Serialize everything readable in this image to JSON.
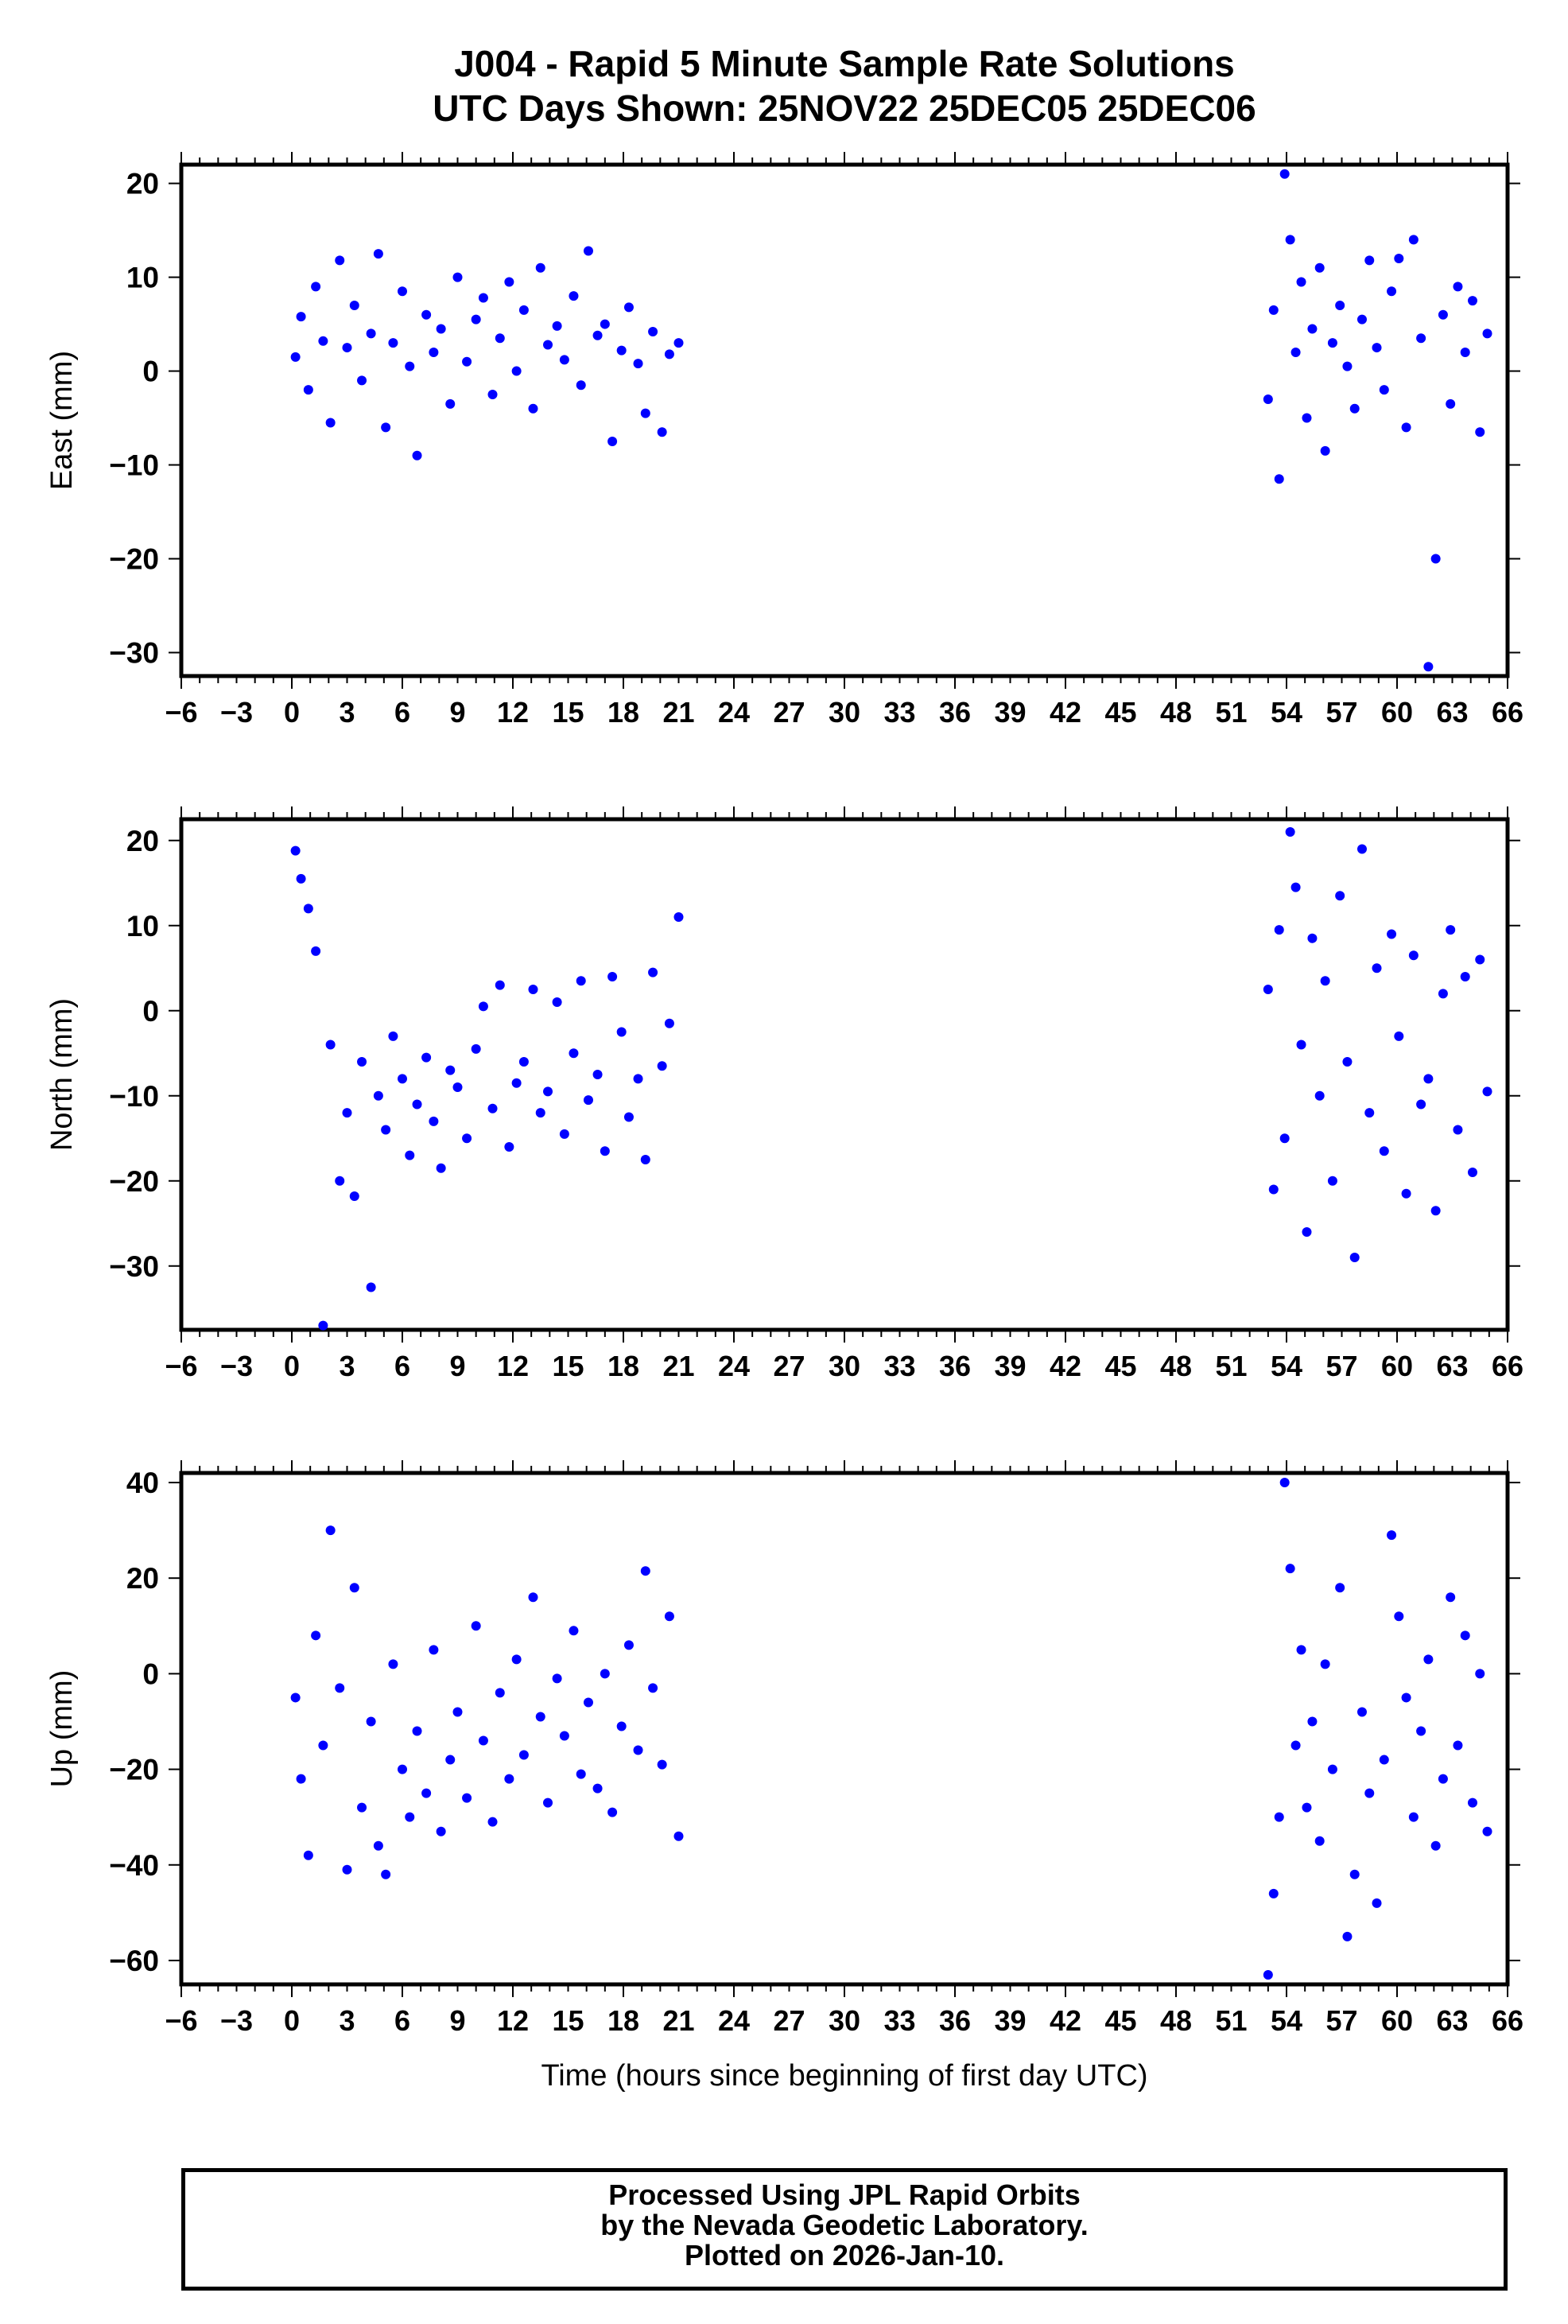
{
  "title_line1": "J004 - Rapid 5 Minute Sample Rate Solutions",
  "title_line2": "UTC Days Shown:  25NOV22 25DEC05 25DEC06",
  "xlabel": "Time (hours since beginning of first day UTC)",
  "footer": {
    "line1": "Processed Using JPL Rapid Orbits",
    "line2": "by the Nevada Geodetic Laboratory.",
    "line3": "Plotted on 2026-Jan-10."
  },
  "colors": {
    "points": "#0000ff",
    "axes": "#000000"
  },
  "chart_data": [
    {
      "type": "scatter",
      "ylabel": "East (mm)",
      "xlim": [
        -6,
        66
      ],
      "ylim": [
        -32.5,
        22
      ],
      "yticks": [
        20,
        10,
        0,
        -10,
        -20,
        -30
      ],
      "xticks": [
        -6,
        0,
        6,
        12,
        18,
        24,
        30,
        36,
        42,
        48,
        54,
        60,
        66
      ],
      "xtick_labels_note": "overlapping labels drawn as printed",
      "series": [
        {
          "x": [
            0.2,
            0.5,
            0.9,
            1.3,
            1.7,
            2.1,
            2.6,
            3.0,
            3.4,
            3.8,
            4.3,
            4.7,
            5.1,
            5.5,
            6.0,
            6.4,
            6.8,
            7.3,
            7.7,
            8.1,
            8.6,
            9.0,
            9.5,
            10.0,
            10.4,
            10.9,
            11.3,
            11.8,
            12.2,
            12.6,
            13.1,
            13.5,
            13.9,
            14.4,
            14.8,
            15.3,
            15.7,
            16.1,
            16.6,
            17.0,
            17.4,
            17.9,
            18.3,
            18.8,
            19.2,
            19.6,
            20.1,
            20.5,
            21.0
          ],
          "y": [
            1.5,
            5.8,
            -2.0,
            9.0,
            3.2,
            -5.5,
            11.8,
            2.5,
            7.0,
            -1.0,
            4.0,
            12.5,
            -6.0,
            3.0,
            8.5,
            0.5,
            -9.0,
            6.0,
            2.0,
            4.5,
            -3.5,
            10.0,
            1.0,
            5.5,
            7.8,
            -2.5,
            3.5,
            9.5,
            0.0,
            6.5,
            -4.0,
            11.0,
            2.8,
            4.8,
            1.2,
            8.0,
            -1.5,
            12.8,
            3.8,
            5.0,
            -7.5,
            2.2,
            6.8,
            0.8,
            -4.5,
            4.2,
            -6.5,
            1.8,
            3.0
          ]
        },
        {
          "x": [
            53.0,
            53.3,
            53.6,
            53.9,
            54.2,
            54.5,
            54.8,
            55.1,
            55.4,
            55.8,
            56.1,
            56.5,
            56.9,
            57.3,
            57.7,
            58.1,
            58.5,
            58.9,
            59.3,
            59.7,
            60.1,
            60.5,
            60.9,
            61.3,
            61.7,
            62.1,
            62.5,
            62.9,
            63.3,
            63.7,
            64.1,
            64.5,
            64.9
          ],
          "y": [
            -3.0,
            6.5,
            -11.5,
            21.0,
            14.0,
            2.0,
            9.5,
            -5.0,
            4.5,
            11.0,
            -8.5,
            3.0,
            7.0,
            0.5,
            -4.0,
            5.5,
            11.8,
            2.5,
            -2.0,
            8.5,
            12.0,
            -6.0,
            14.0,
            3.5,
            -31.5,
            -20.0,
            6.0,
            -3.5,
            9.0,
            2.0,
            7.5,
            -6.5,
            4.0
          ]
        }
      ]
    },
    {
      "type": "scatter",
      "ylabel": "North (mm)",
      "xlim": [
        -6,
        66
      ],
      "ylim": [
        -37.5,
        22.5
      ],
      "yticks": [
        20,
        10,
        0,
        -10,
        -20,
        -30
      ],
      "xticks": [
        -6,
        0,
        6,
        12,
        18,
        24,
        30,
        36,
        42,
        48,
        54,
        60,
        66
      ],
      "series": [
        {
          "x": [
            0.2,
            0.5,
            0.9,
            1.3,
            1.7,
            2.1,
            2.6,
            3.0,
            3.4,
            3.8,
            4.3,
            4.7,
            5.1,
            5.5,
            6.0,
            6.4,
            6.8,
            7.3,
            7.7,
            8.1,
            8.6,
            9.0,
            9.5,
            10.0,
            10.4,
            10.9,
            11.3,
            11.8,
            12.2,
            12.6,
            13.1,
            13.5,
            13.9,
            14.4,
            14.8,
            15.3,
            15.7,
            16.1,
            16.6,
            17.0,
            17.4,
            17.9,
            18.3,
            18.8,
            19.2,
            19.6,
            20.1,
            20.5,
            21.0
          ],
          "y": [
            18.8,
            15.5,
            12.0,
            7.0,
            -37.0,
            -4.0,
            -20.0,
            -12.0,
            -21.8,
            -6.0,
            -32.5,
            -10.0,
            -14.0,
            -3.0,
            -8.0,
            -17.0,
            -11.0,
            -5.5,
            -13.0,
            -18.5,
            -7.0,
            -9.0,
            -15.0,
            -4.5,
            0.5,
            -11.5,
            3.0,
            -16.0,
            -8.5,
            -6.0,
            2.5,
            -12.0,
            -9.5,
            1.0,
            -14.5,
            -5.0,
            3.5,
            -10.5,
            -7.5,
            -16.5,
            4.0,
            -2.5,
            -12.5,
            -8.0,
            -17.5,
            4.5,
            -6.5,
            -1.5,
            11.0
          ]
        },
        {
          "x": [
            53.0,
            53.3,
            53.6,
            53.9,
            54.2,
            54.5,
            54.8,
            55.1,
            55.4,
            55.8,
            56.1,
            56.5,
            56.9,
            57.3,
            57.7,
            58.1,
            58.5,
            58.9,
            59.3,
            59.7,
            60.1,
            60.5,
            60.9,
            61.3,
            61.7,
            62.1,
            62.5,
            62.9,
            63.3,
            63.7,
            64.1,
            64.5,
            64.9
          ],
          "y": [
            2.5,
            -21.0,
            9.5,
            -15.0,
            21.0,
            14.5,
            -4.0,
            -26.0,
            8.5,
            -10.0,
            3.5,
            -20.0,
            13.5,
            -6.0,
            -29.0,
            19.0,
            -12.0,
            5.0,
            -16.5,
            9.0,
            -3.0,
            -21.5,
            6.5,
            -11.0,
            -8.0,
            -23.5,
            2.0,
            9.5,
            -14.0,
            4.0,
            -19.0,
            6.0,
            -9.5
          ]
        }
      ]
    },
    {
      "type": "scatter",
      "ylabel": "Up (mm)",
      "xlim": [
        -6,
        66
      ],
      "ylim": [
        -65,
        42
      ],
      "yticks": [
        40,
        20,
        0,
        -20,
        -40,
        -60
      ],
      "xticks": [
        -6,
        0,
        6,
        12,
        18,
        24,
        30,
        36,
        42,
        48,
        54,
        60,
        66
      ],
      "series": [
        {
          "x": [
            0.2,
            0.5,
            0.9,
            1.3,
            1.7,
            2.1,
            2.6,
            3.0,
            3.4,
            3.8,
            4.3,
            4.7,
            5.1,
            5.5,
            6.0,
            6.4,
            6.8,
            7.3,
            7.7,
            8.1,
            8.6,
            9.0,
            9.5,
            10.0,
            10.4,
            10.9,
            11.3,
            11.8,
            12.2,
            12.6,
            13.1,
            13.5,
            13.9,
            14.4,
            14.8,
            15.3,
            15.7,
            16.1,
            16.6,
            17.0,
            17.4,
            17.9,
            18.3,
            18.8,
            19.2,
            19.6,
            20.1,
            20.5,
            21.0
          ],
          "y": [
            -5.0,
            -22.0,
            -38.0,
            8.0,
            -15.0,
            30.0,
            -3.0,
            -41.0,
            18.0,
            -28.0,
            -10.0,
            -36.0,
            -42.0,
            2.0,
            -20.0,
            -30.0,
            -12.0,
            -25.0,
            5.0,
            -33.0,
            -18.0,
            -8.0,
            -26.0,
            10.0,
            -14.0,
            -31.0,
            -4.0,
            -22.0,
            3.0,
            -17.0,
            16.0,
            -9.0,
            -27.0,
            -1.0,
            -13.0,
            9.0,
            -21.0,
            -6.0,
            -24.0,
            0.0,
            -29.0,
            -11.0,
            6.0,
            -16.0,
            21.5,
            -3.0,
            -19.0,
            12.0,
            -34.0
          ]
        },
        {
          "x": [
            53.0,
            53.3,
            53.6,
            53.9,
            54.2,
            54.5,
            54.8,
            55.1,
            55.4,
            55.8,
            56.1,
            56.5,
            56.9,
            57.3,
            57.7,
            58.1,
            58.5,
            58.9,
            59.3,
            59.7,
            60.1,
            60.5,
            60.9,
            61.3,
            61.7,
            62.1,
            62.5,
            62.9,
            63.3,
            63.7,
            64.1,
            64.5,
            64.9
          ],
          "y": [
            -63.0,
            -46.0,
            -30.0,
            40.0,
            22.0,
            -15.0,
            5.0,
            -28.0,
            -10.0,
            -35.0,
            2.0,
            -20.0,
            18.0,
            -55.0,
            -42.0,
            -8.0,
            -25.0,
            -48.0,
            -18.0,
            29.0,
            12.0,
            -5.0,
            -30.0,
            -12.0,
            3.0,
            -36.0,
            -22.0,
            16.0,
            -15.0,
            8.0,
            -27.0,
            0.0,
            -33.0
          ]
        }
      ]
    }
  ]
}
